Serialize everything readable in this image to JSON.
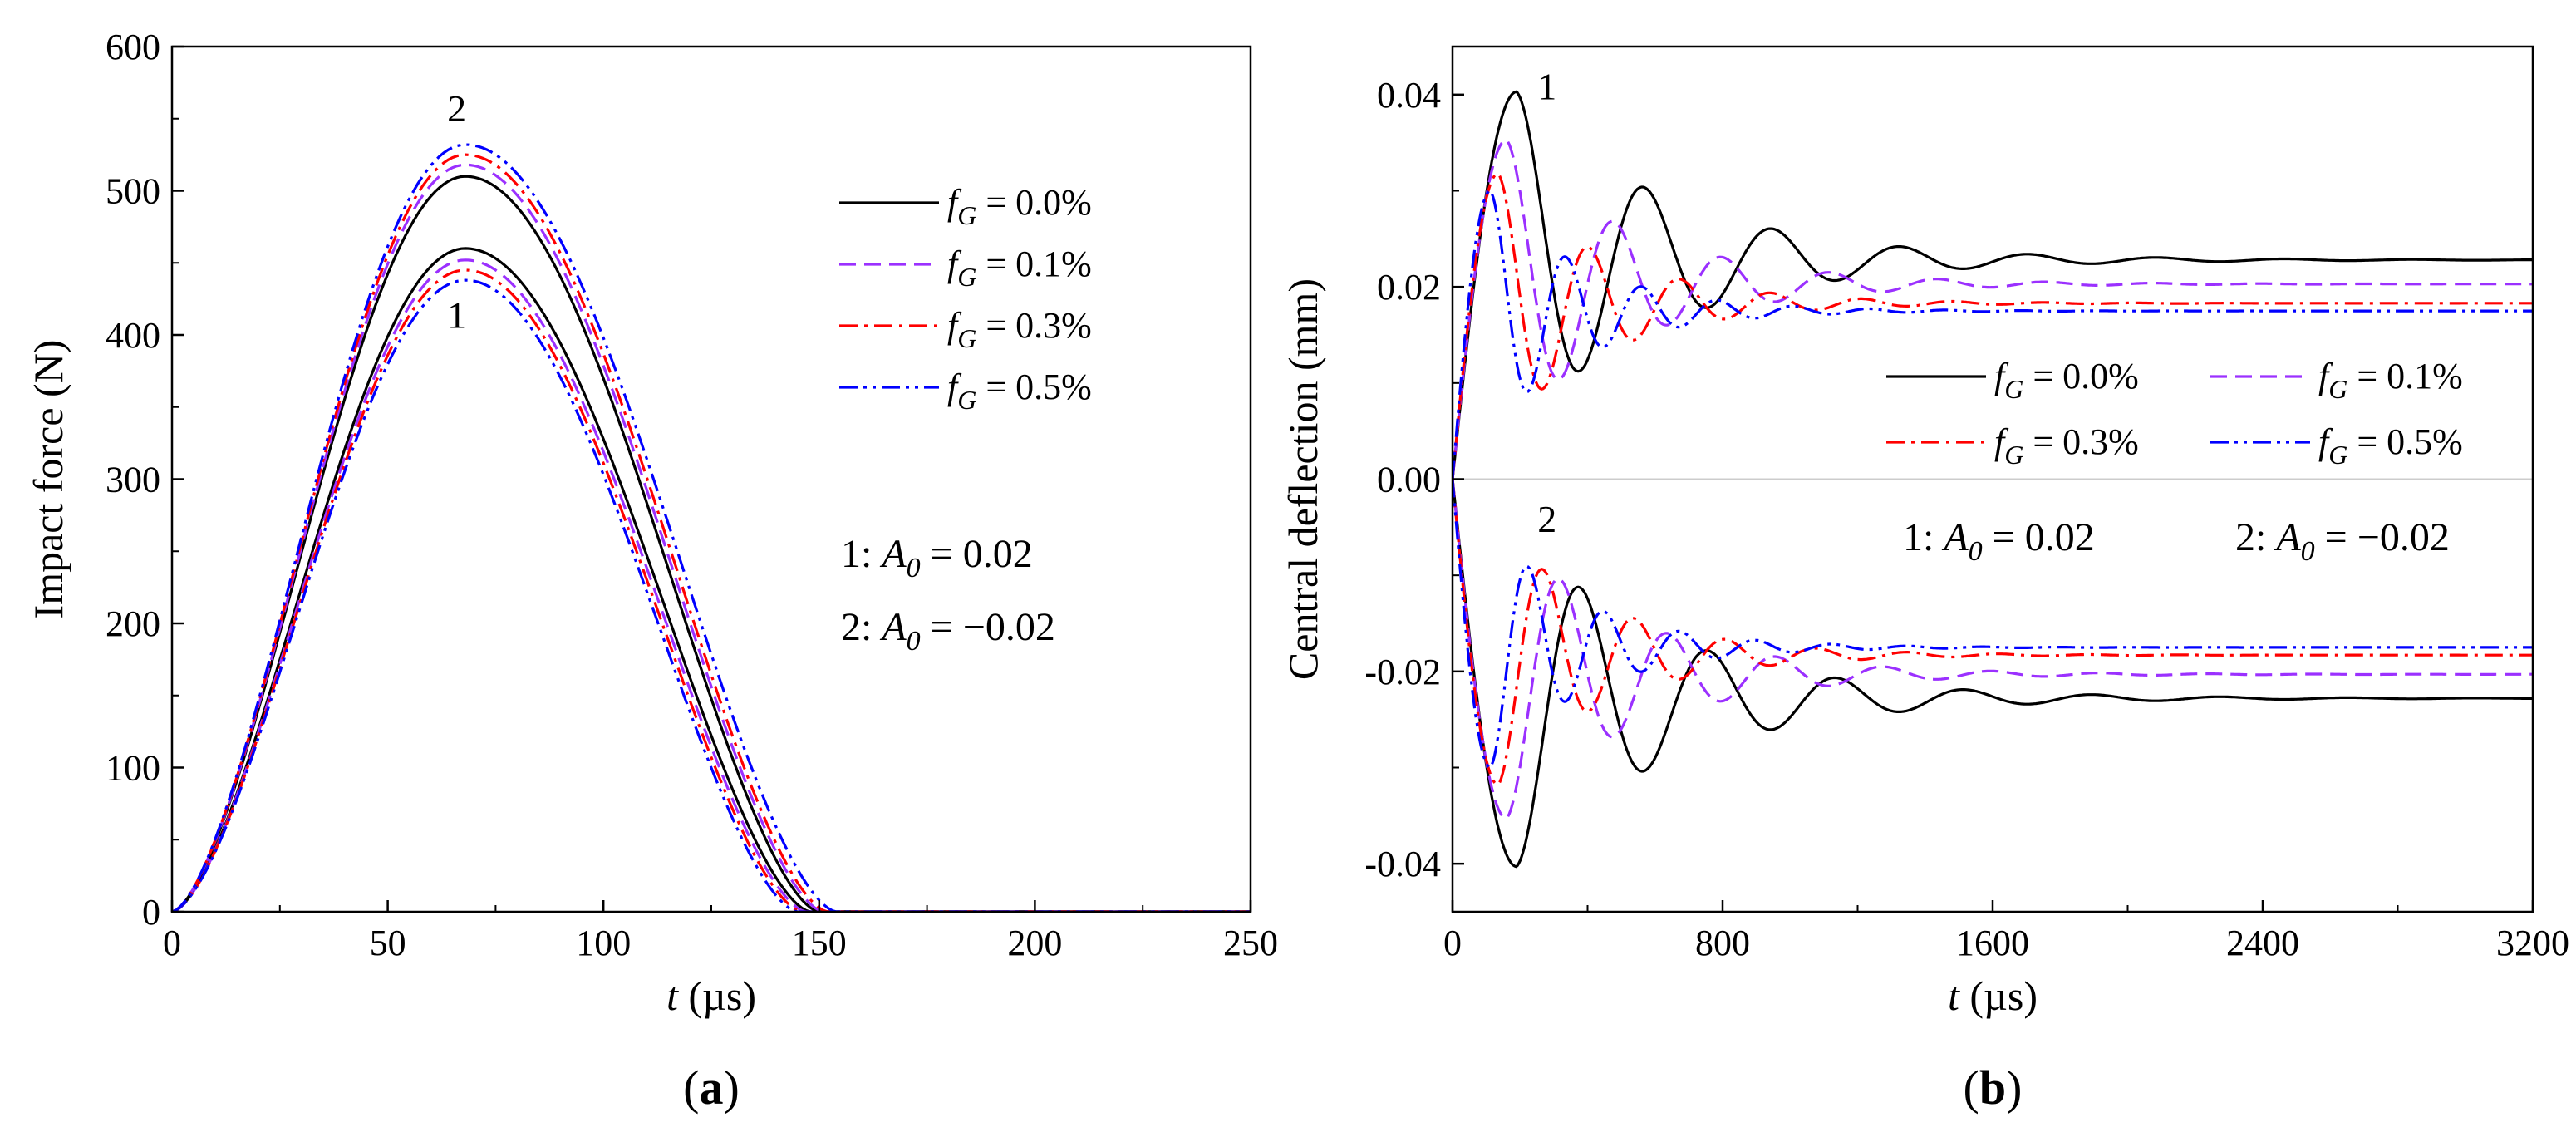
{
  "chart_data": [
    {
      "type": "line",
      "panel_label": "(a)",
      "panel_letter": "a",
      "xlabel_var": "t",
      "xlabel_unit": " (µs)",
      "ylabel": "Impact force (N)",
      "xlim": [
        0,
        250
      ],
      "ylim": [
        0,
        600
      ],
      "xticks": [
        0,
        50,
        100,
        150,
        200,
        250
      ],
      "yticks": [
        0,
        100,
        200,
        300,
        400,
        500,
        600
      ],
      "legend_position": "top-right",
      "legend": [
        {
          "pre": "f",
          "sub": "G",
          "post": " = 0.0%",
          "color": "#000000",
          "dash": "solid"
        },
        {
          "pre": "f",
          "sub": "G",
          "post": " = 0.1%",
          "color": "#9b30ff",
          "dash": "dash"
        },
        {
          "pre": "f",
          "sub": "G",
          "post": " = 0.3%",
          "color": "#ff0000",
          "dash": "dashdot"
        },
        {
          "pre": "f",
          "sub": "G",
          "post": " = 0.5%",
          "color": "#0000ff",
          "dash": "dashdotdot"
        }
      ],
      "annotations": [
        {
          "text": "1: ",
          "var": "A",
          "sub": "0",
          "post": " = 0.02"
        },
        {
          "text": "2: ",
          "var": "A",
          "sub": "0",
          "post": " = −0.02"
        }
      ],
      "curve_labels": [
        {
          "text": "1",
          "x": 66,
          "y": 405
        },
        {
          "text": "2",
          "x": 66,
          "y": 548
        }
      ],
      "series": [
        {
          "name": "fG = 0.0%, A0 = 0.02",
          "color": "#000000",
          "dash": "solid",
          "peak": 460,
          "t_peak": 68,
          "duration": 148
        },
        {
          "name": "fG = 0.1%, A0 = 0.02",
          "color": "#9b30ff",
          "dash": "dash",
          "peak": 452,
          "t_peak": 68,
          "duration": 147
        },
        {
          "name": "fG = 0.3%, A0 = 0.02",
          "color": "#ff0000",
          "dash": "dashdot",
          "peak": 445,
          "t_peak": 68,
          "duration": 146
        },
        {
          "name": "fG = 0.5%, A0 = 0.02",
          "color": "#0000ff",
          "dash": "dashdotdot",
          "peak": 438,
          "t_peak": 68,
          "duration": 145
        },
        {
          "name": "fG = 0.0%, A0 = -0.02",
          "color": "#000000",
          "dash": "solid",
          "peak": 510,
          "t_peak": 68,
          "duration": 150
        },
        {
          "name": "fG = 0.1%, A0 = -0.02",
          "color": "#9b30ff",
          "dash": "dash",
          "peak": 518,
          "t_peak": 68,
          "duration": 151
        },
        {
          "name": "fG = 0.3%, A0 = -0.02",
          "color": "#ff0000",
          "dash": "dashdot",
          "peak": 525,
          "t_peak": 68,
          "duration": 152
        },
        {
          "name": "fG = 0.5%, A0 = -0.02",
          "color": "#0000ff",
          "dash": "dashdotdot",
          "peak": 532,
          "t_peak": 68,
          "duration": 154
        }
      ]
    },
    {
      "type": "line",
      "panel_label": "(b)",
      "panel_letter": "b",
      "xlabel_var": "t",
      "xlabel_unit": " (µs)",
      "ylabel": "Central deflection (mm)",
      "xlim": [
        0,
        3200
      ],
      "ylim": [
        -0.045,
        0.045
      ],
      "xticks": [
        0,
        800,
        1600,
        2400,
        3200
      ],
      "yticks": [
        -0.04,
        -0.02,
        0.0,
        0.02,
        0.04
      ],
      "ytick_labels": [
        "-0.04",
        "-0.02",
        "0.00",
        "0.02",
        "0.04"
      ],
      "legend_position": "center-right",
      "legend": [
        {
          "pre": "f",
          "sub": "G",
          "post": " = 0.0%",
          "color": "#000000",
          "dash": "solid"
        },
        {
          "pre": "f",
          "sub": "G",
          "post": " = 0.1%",
          "color": "#9b30ff",
          "dash": "dash"
        },
        {
          "pre": "f",
          "sub": "G",
          "post": " = 0.3%",
          "color": "#ff0000",
          "dash": "dashdot"
        },
        {
          "pre": "f",
          "sub": "G",
          "post": " = 0.5%",
          "color": "#0000ff",
          "dash": "dashdotdot"
        }
      ],
      "annotations": [
        {
          "text": "1: ",
          "var": "A",
          "sub": "0",
          "post": " = 0.02"
        },
        {
          "text": "2: ",
          "var": "A",
          "sub": "0",
          "post": " = −0.02"
        }
      ],
      "curve_labels": [
        {
          "text": "1",
          "x": 280,
          "y": 0.0395
        },
        {
          "text": "2",
          "x": 280,
          "y": -0.0055
        }
      ],
      "series": [
        {
          "name": "fG = 0.0%, A0 = 0.02",
          "color": "#000000",
          "dash": "solid",
          "final": 0.0228,
          "amp": 0.0175,
          "period": 380,
          "tau": 450,
          "peak_t": 190
        },
        {
          "name": "fG = 0.1%, A0 = 0.02",
          "color": "#9b30ff",
          "dash": "dash",
          "final": 0.0203,
          "amp": 0.015,
          "period": 320,
          "tau": 380,
          "peak_t": 160
        },
        {
          "name": "fG = 0.3%, A0 = 0.02",
          "color": "#ff0000",
          "dash": "dashdot",
          "final": 0.0183,
          "amp": 0.0135,
          "period": 270,
          "tau": 320,
          "peak_t": 135
        },
        {
          "name": "fG = 0.5%, A0 = 0.02",
          "color": "#0000ff",
          "dash": "dashdotdot",
          "final": 0.0175,
          "amp": 0.0125,
          "period": 225,
          "tau": 280,
          "peak_t": 112
        },
        {
          "name": "fG = 0.0%, A0 = -0.02",
          "color": "#000000",
          "dash": "solid",
          "final": -0.0228,
          "amp": -0.0175,
          "period": 380,
          "tau": 450,
          "peak_t": 190
        },
        {
          "name": "fG = 0.1%, A0 = -0.02",
          "color": "#9b30ff",
          "dash": "dash",
          "final": -0.0203,
          "amp": -0.015,
          "period": 320,
          "tau": 380,
          "peak_t": 160
        },
        {
          "name": "fG = 0.3%, A0 = -0.02",
          "color": "#ff0000",
          "dash": "dashdot",
          "final": -0.0183,
          "amp": -0.0135,
          "period": 270,
          "tau": 320,
          "peak_t": 135
        },
        {
          "name": "fG = 0.5%, A0 = -0.02",
          "color": "#0000ff",
          "dash": "dashdotdot",
          "final": -0.0175,
          "amp": -0.0125,
          "period": 225,
          "tau": 280,
          "peak_t": 112
        }
      ]
    }
  ]
}
